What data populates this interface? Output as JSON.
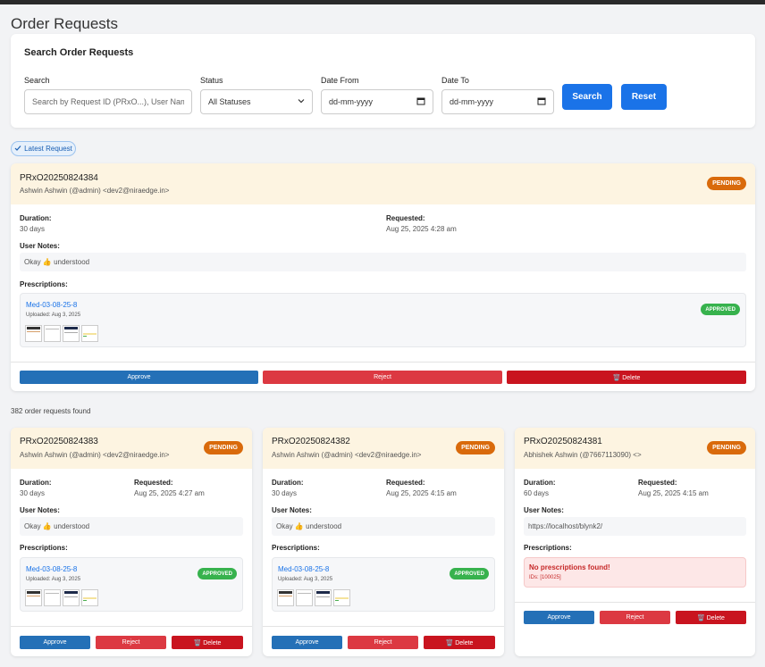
{
  "page": {
    "title": "Order Requests"
  },
  "search": {
    "heading": "Search Order Requests",
    "search_label": "Search",
    "search_placeholder": "Search by Request ID (PRxO...), User Name, E",
    "status_label": "Status",
    "status_value": "All Statuses",
    "date_from_label": "Date From",
    "date_from_value": "dd-mm-yyyy",
    "date_to_label": "Date To",
    "date_to_value": "dd-mm-yyyy",
    "search_button": "Search",
    "reset_button": "Reset"
  },
  "latest_tag": "Latest Request",
  "latest": {
    "id": "PRxO20250824384",
    "user": "Ashwin Ashwin (@admin) <dev2@niraedge.in>",
    "status": "PENDING",
    "duration_label": "Duration:",
    "duration": "30 days",
    "requested_label": "Requested:",
    "requested": "Aug 25, 2025 4:28 am",
    "notes_label": "User Notes:",
    "notes": "Okay 👍 understood",
    "presc_label": "Prescriptions:",
    "presc_name": "Med-03-08-25-8",
    "presc_uploaded": "Uploaded: Aug 3, 2025",
    "presc_status": "APPROVED",
    "approve": "Approve",
    "reject": "Reject",
    "delete": "🗑️ Delete"
  },
  "found_text": "382 order requests found",
  "cards": [
    {
      "id": "PRxO20250824383",
      "user": "Ashwin Ashwin (@admin) <dev2@niraedge.in>",
      "status": "PENDING",
      "duration_label": "Duration:",
      "duration": "30 days",
      "requested_label": "Requested:",
      "requested": "Aug 25, 2025 4:27 am",
      "notes_label": "User Notes:",
      "notes": "Okay 👍 understood",
      "presc_label": "Prescriptions:",
      "presc_name": "Med-03-08-25-8",
      "presc_uploaded": "Uploaded: Aug 3, 2025",
      "presc_status": "APPROVED",
      "approve": "Approve",
      "reject": "Reject",
      "delete": "🗑️ Delete"
    },
    {
      "id": "PRxO20250824382",
      "user": "Ashwin Ashwin (@admin) <dev2@niraedge.in>",
      "status": "PENDING",
      "duration_label": "Duration:",
      "duration": "30 days",
      "requested_label": "Requested:",
      "requested": "Aug 25, 2025 4:15 am",
      "notes_label": "User Notes:",
      "notes": "Okay 👍 understood",
      "presc_label": "Prescriptions:",
      "presc_name": "Med-03-08-25-8",
      "presc_uploaded": "Uploaded: Aug 3, 2025",
      "presc_status": "APPROVED",
      "approve": "Approve",
      "reject": "Reject",
      "delete": "🗑️ Delete"
    },
    {
      "id": "PRxO20250824381",
      "user": "Abhishek Ashwin (@7667113090) <>",
      "status": "PENDING",
      "duration_label": "Duration:",
      "duration": "60 days",
      "requested_label": "Requested:",
      "requested": "Aug 25, 2025 4:15 am",
      "notes_label": "User Notes:",
      "notes": "https://localhost/blynk2/",
      "presc_label": "Prescriptions:",
      "no_presc": "No prescriptions found!",
      "no_presc_ids": "IDs: [100025]",
      "approve": "Approve",
      "reject": "Reject",
      "delete": "🗑️ Delete"
    }
  ],
  "colors": {
    "primary": "#1a73e8",
    "pending": "#d96a0b",
    "approved": "#37b24d",
    "reject": "#dc3942",
    "delete": "#c9141f",
    "approve": "#2470b7"
  }
}
